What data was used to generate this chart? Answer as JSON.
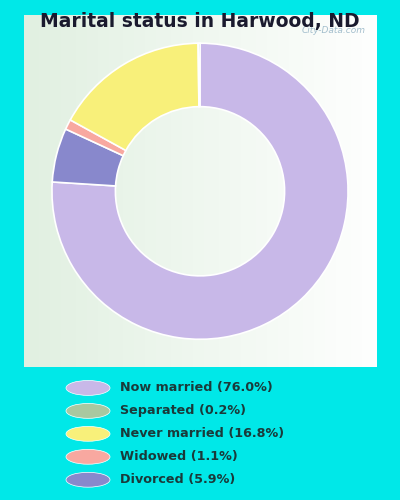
{
  "title": "Marital status in Harwood, ND",
  "title_fontsize": 13.5,
  "title_color": "#1a1a2e",
  "categories": [
    "Now married",
    "Separated",
    "Never married",
    "Widowed",
    "Divorced"
  ],
  "values": [
    76.0,
    0.2,
    16.8,
    1.1,
    5.9
  ],
  "colors": [
    "#c8b8e8",
    "#a8c8a0",
    "#f8f07a",
    "#f8a8a0",
    "#8888cc"
  ],
  "legend_labels": [
    "Now married (76.0%)",
    "Separated (0.2%)",
    "Never married (16.8%)",
    "Widowed (1.1%)",
    "Divorced (5.9%)"
  ],
  "bg_outer": "#00e8e8",
  "bg_chart_colors": [
    "#c8e8c8",
    "#e8f4e8",
    "#f0f8f0",
    "#ffffff"
  ],
  "watermark": "City-Data.com",
  "donut_width": 0.45,
  "start_angle": 90,
  "pie_order": [
    0,
    4,
    3,
    2,
    1
  ],
  "legend_text_color": "#1a3a3a"
}
